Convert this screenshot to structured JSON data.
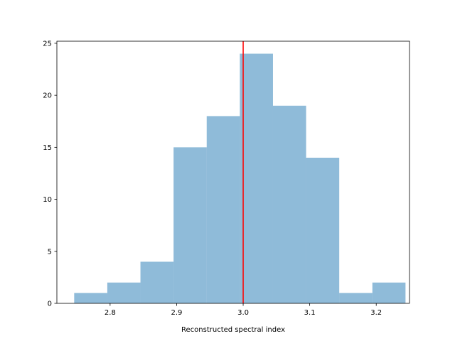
{
  "chart_data": {
    "type": "bar",
    "subtype": "histogram",
    "xlabel": "Reconstructed spectral index",
    "ylabel": "",
    "title": "",
    "xlim": [
      2.72,
      3.25
    ],
    "ylim": [
      0,
      25.2
    ],
    "x_ticks": [
      2.8,
      2.9,
      3.0,
      3.1,
      3.2
    ],
    "x_tick_labels": [
      "2.8",
      "2.9",
      "3.0",
      "3.1",
      "3.2"
    ],
    "y_ticks": [
      0,
      5,
      10,
      15,
      20,
      25
    ],
    "y_tick_labels": [
      "0",
      "5",
      "10",
      "15",
      "20",
      "25"
    ],
    "bins": [
      {
        "x0": 2.746,
        "x1": 2.7958,
        "count": 1
      },
      {
        "x0": 2.7958,
        "x1": 2.8456,
        "count": 2
      },
      {
        "x0": 2.8456,
        "x1": 2.8954,
        "count": 4
      },
      {
        "x0": 2.8954,
        "x1": 2.9452,
        "count": 15
      },
      {
        "x0": 2.9452,
        "x1": 2.995,
        "count": 18
      },
      {
        "x0": 2.995,
        "x1": 3.0448,
        "count": 24
      },
      {
        "x0": 3.0448,
        "x1": 3.0946,
        "count": 19
      },
      {
        "x0": 3.0946,
        "x1": 3.1444,
        "count": 14
      },
      {
        "x0": 3.1444,
        "x1": 3.1942,
        "count": 1
      },
      {
        "x0": 3.1942,
        "x1": 3.244,
        "count": 2
      }
    ],
    "reference_line": {
      "x": 3.0,
      "color": "#ff0000"
    },
    "bar_color": "#1f77b4",
    "bar_alpha": 0.5,
    "grid": false,
    "legend": "none"
  }
}
